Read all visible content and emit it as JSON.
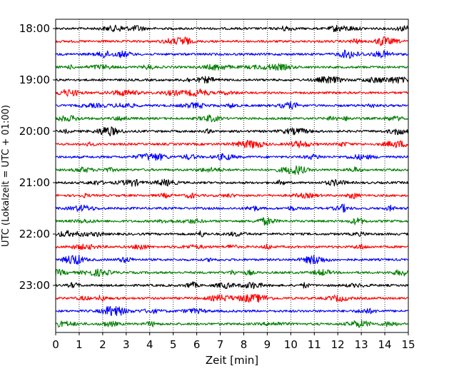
{
  "chart_data": {
    "type": "line",
    "title": "",
    "xlabel": "Zeit  [min]",
    "ylabel": "UTC (Lokalzeit = UTC + 01:00)",
    "xlim": [
      0,
      15
    ],
    "x_ticks": [
      "0",
      "1",
      "2",
      "3",
      "4",
      "5",
      "6",
      "7",
      "8",
      "9",
      "10",
      "11",
      "12",
      "13",
      "14",
      "15"
    ],
    "y_tick_labels": [
      "18:00",
      "19:00",
      "20:00",
      "21:00",
      "22:00",
      "23:00"
    ],
    "grid": "vertical dotted lines at each minute",
    "legend": "none",
    "trace_colors": [
      "#000000",
      "#ff0000",
      "#0000ff",
      "#007f00"
    ],
    "rows": [
      {
        "start": "18:00",
        "color": "#000000"
      },
      {
        "start": "18:15",
        "color": "#ff0000"
      },
      {
        "start": "18:30",
        "color": "#0000ff"
      },
      {
        "start": "18:45",
        "color": "#007f00"
      },
      {
        "start": "19:00",
        "color": "#000000"
      },
      {
        "start": "19:15",
        "color": "#ff0000"
      },
      {
        "start": "19:30",
        "color": "#0000ff"
      },
      {
        "start": "19:45",
        "color": "#007f00"
      },
      {
        "start": "20:00",
        "color": "#000000"
      },
      {
        "start": "20:15",
        "color": "#ff0000"
      },
      {
        "start": "20:30",
        "color": "#0000ff"
      },
      {
        "start": "20:45",
        "color": "#007f00"
      },
      {
        "start": "21:00",
        "color": "#000000"
      },
      {
        "start": "21:15",
        "color": "#ff0000"
      },
      {
        "start": "21:30",
        "color": "#0000ff"
      },
      {
        "start": "21:45",
        "color": "#007f00"
      },
      {
        "start": "22:00",
        "color": "#000000"
      },
      {
        "start": "22:15",
        "color": "#ff0000"
      },
      {
        "start": "22:30",
        "color": "#0000ff"
      },
      {
        "start": "22:45",
        "color": "#007f00"
      },
      {
        "start": "23:00",
        "color": "#000000"
      },
      {
        "start": "23:15",
        "color": "#ff0000"
      },
      {
        "start": "23:30",
        "color": "#0000ff"
      },
      {
        "start": "23:45",
        "color": "#007f00"
      }
    ]
  }
}
